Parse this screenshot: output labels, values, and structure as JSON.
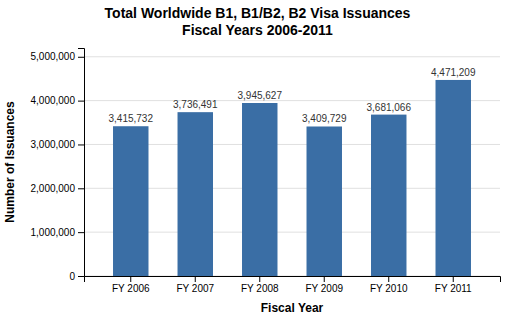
{
  "chart_data": {
    "type": "bar",
    "title": "Total Worldwide B1, B1/B2, B2 Visa Issuances\nFiscal Years 2006-2011",
    "xlabel": "Fiscal Year",
    "ylabel": "Number of Issuances",
    "categories": [
      "FY 2006",
      "FY 2007",
      "FY 2008",
      "FY 2009",
      "FY 2010",
      "FY 2011"
    ],
    "values": [
      3415732,
      3736491,
      3945627,
      3409729,
      3681066,
      4471209
    ],
    "value_labels": [
      "3,415,732",
      "3,736,491",
      "3,945,627",
      "3,409,729",
      "3,681,066",
      "4,471,209"
    ],
    "data_labels": true,
    "color": "#3A6EA5",
    "ylim": [
      0,
      5200000
    ],
    "yticks": [
      0,
      {
        "value": 1000000,
        "label": "1,000,000"
      },
      {
        "value": 2000000,
        "label": "2,000,000"
      },
      {
        "value": 3000000,
        "label": "3,000,000"
      },
      {
        "value": 4000000,
        "label": "4,000,000"
      },
      {
        "value": 5000000,
        "label": "5,000,000"
      }
    ],
    "grid": true
  }
}
